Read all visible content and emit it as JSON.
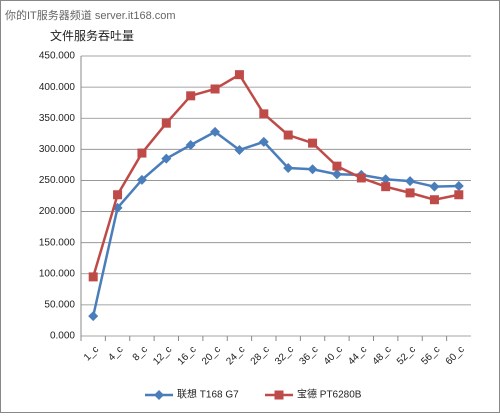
{
  "watermark": "你的IT服务器频道 server.it168.com",
  "chart_data": {
    "type": "line",
    "title": "文件服务吞吐量",
    "categories": [
      "1_c",
      "4_c",
      "8_c",
      "12_c",
      "16_c",
      "20_c",
      "24_c",
      "28_c",
      "32_c",
      "36_c",
      "40_c",
      "44_c",
      "48_c",
      "52_c",
      "56_c",
      "60_c"
    ],
    "series": [
      {
        "name": "联想 T168 G7",
        "color": "#4a7ebb",
        "marker": "diamond",
        "values": [
          32,
          206,
          251,
          285,
          307,
          328,
          299,
          312,
          270,
          268,
          260,
          259,
          252,
          249,
          240,
          241
        ]
      },
      {
        "name": "宝德 PT6280B",
        "color": "#be4b48",
        "marker": "square",
        "values": [
          95,
          227,
          294,
          342,
          386,
          397,
          420,
          357,
          323,
          310,
          273,
          254,
          240,
          230,
          219,
          227
        ]
      }
    ],
    "ylim": [
      0,
      450
    ],
    "yticks": [
      {
        "value": 0,
        "label": "0.000"
      },
      {
        "value": 50,
        "label": "50.000"
      },
      {
        "value": 100,
        "label": "100.000"
      },
      {
        "value": 150,
        "label": "150.000"
      },
      {
        "value": 200,
        "label": "200.000"
      },
      {
        "value": 250,
        "label": "250.000"
      },
      {
        "value": 300,
        "label": "300.000"
      },
      {
        "value": 350,
        "label": "350.000"
      },
      {
        "value": 400,
        "label": "400.000"
      },
      {
        "value": 450,
        "label": "450.000"
      }
    ],
    "grid": true,
    "legend": "bottom"
  }
}
